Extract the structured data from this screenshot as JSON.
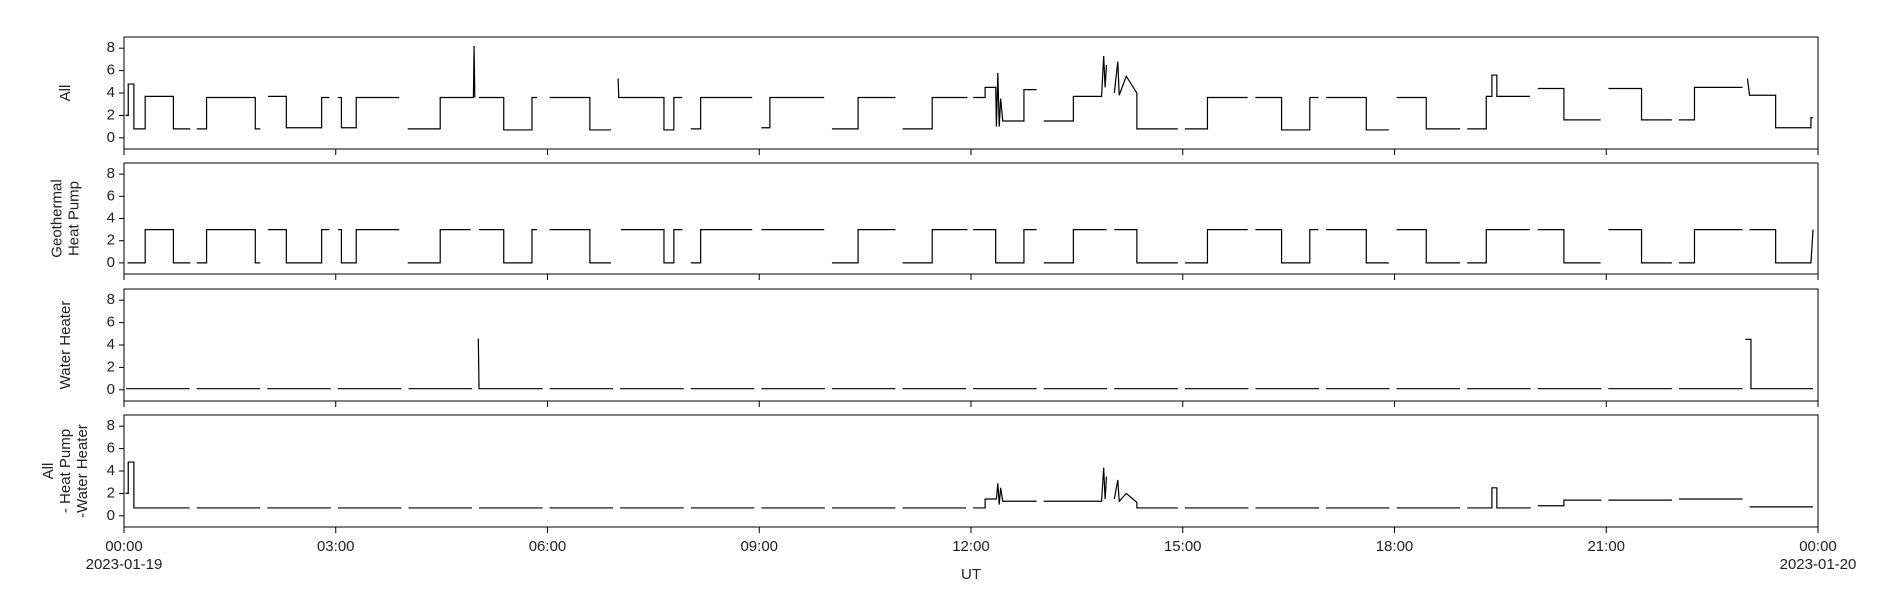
{
  "chart_data": [
    {
      "type": "line",
      "ylabel": [
        "All"
      ],
      "color": "#000000",
      "ylim": [
        -1,
        9
      ],
      "yticks": [
        0,
        2,
        4,
        6,
        8
      ],
      "xlim": [
        0,
        24
      ],
      "xticks": [
        0,
        3,
        6,
        9,
        12,
        15,
        18,
        21,
        24
      ],
      "x": [
        0.02,
        0.06,
        0.06,
        0.14,
        0.14,
        0.3,
        0.3,
        0.7,
        0.7,
        0.94,
        0.97,
        1.03,
        1.17,
        1.17,
        1.86,
        1.86,
        1.93,
        1.97,
        2.04,
        2.3,
        2.3,
        2.8,
        2.8,
        2.91,
        2.97,
        3.03,
        3.08,
        3.08,
        3.29,
        3.29,
        3.9,
        3.97,
        4.02,
        4.48,
        4.48,
        4.95,
        4.96,
        4.97,
        5.0,
        5.03,
        5.38,
        5.38,
        5.78,
        5.78,
        5.85,
        5.97,
        6.03,
        6.6,
        6.6,
        6.9,
        6.97,
        7.0,
        7.01,
        7.04,
        7.65,
        7.65,
        7.79,
        7.79,
        7.91,
        7.97,
        8.03,
        8.17,
        8.17,
        8.9,
        8.97,
        9.03,
        9.15,
        9.15,
        9.92,
        9.97,
        10.03,
        10.4,
        10.4,
        10.93,
        10.97,
        11.03,
        11.45,
        11.45,
        11.95,
        11.98,
        12.03,
        12.2,
        12.2,
        12.35,
        12.36,
        12.38,
        12.4,
        12.42,
        12.45,
        12.75,
        12.75,
        12.93,
        12.97,
        13.03,
        13.45,
        13.45,
        13.85,
        13.88,
        13.9,
        13.92,
        13.97,
        14.03,
        14.08,
        14.1,
        14.2,
        14.35,
        14.35,
        14.93,
        14.97,
        15.03,
        15.35,
        15.35,
        15.92,
        15.97,
        16.03,
        16.4,
        16.4,
        16.8,
        16.8,
        16.92,
        16.97,
        17.03,
        17.6,
        17.6,
        17.92,
        17.97,
        18.03,
        18.45,
        18.45,
        18.93,
        18.97,
        19.03,
        19.3,
        19.3,
        19.38,
        19.38,
        19.45,
        19.45,
        19.92,
        19.97,
        20.03,
        20.4,
        20.4,
        20.92,
        20.97,
        21.03,
        21.5,
        21.5,
        21.93,
        21.97,
        22.03,
        22.25,
        22.25,
        22.93,
        22.97,
        23.0,
        23.03,
        23.4,
        23.4,
        23.9,
        23.9,
        23.93
      ],
      "values": [
        2,
        2,
        4.8,
        4.8,
        0.8,
        0.8,
        3.7,
        3.7,
        0.8,
        0.8,
        null,
        0.8,
        0.8,
        3.6,
        3.6,
        0.8,
        0.8,
        null,
        3.7,
        3.7,
        0.9,
        0.9,
        3.6,
        3.6,
        null,
        3.6,
        3.6,
        0.9,
        0.9,
        3.6,
        3.6,
        null,
        0.8,
        0.8,
        3.6,
        3.6,
        8.2,
        3.6,
        null,
        3.6,
        3.6,
        0.7,
        0.7,
        3.6,
        3.6,
        null,
        3.6,
        3.6,
        0.7,
        0.7,
        null,
        5.3,
        3.6,
        3.6,
        3.6,
        0.7,
        0.7,
        3.6,
        3.6,
        null,
        0.8,
        0.8,
        3.6,
        3.6,
        null,
        0.9,
        0.9,
        3.6,
        3.6,
        null,
        0.8,
        0.8,
        3.6,
        3.6,
        null,
        0.8,
        0.8,
        3.6,
        3.6,
        null,
        3.6,
        3.6,
        4.5,
        4.5,
        1.0,
        5.8,
        1.0,
        3.5,
        1.5,
        1.5,
        4.3,
        4.3,
        null,
        1.5,
        1.5,
        3.7,
        3.7,
        7.3,
        4.5,
        6.5,
        null,
        4.0,
        6.8,
        3.8,
        5.5,
        4.0,
        0.8,
        0.8,
        null,
        0.8,
        0.8,
        3.6,
        3.6,
        null,
        3.6,
        3.6,
        0.7,
        0.7,
        3.6,
        3.6,
        null,
        3.6,
        3.6,
        0.7,
        0.7,
        null,
        3.6,
        3.6,
        0.8,
        0.8,
        null,
        0.8,
        0.8,
        3.7,
        3.7,
        5.6,
        5.6,
        3.7,
        3.7,
        null,
        4.4,
        4.4,
        1.6,
        1.6,
        null,
        4.4,
        4.4,
        1.6,
        1.6,
        null,
        1.6,
        1.6,
        4.5,
        4.5,
        null,
        5.3,
        3.8,
        3.8,
        0.9,
        0.9,
        1.8,
        1.8
      ]
    },
    {
      "type": "line",
      "ylabel": [
        "Geothermal",
        "Heat Pump"
      ],
      "color": "#000000",
      "ylim": [
        -1,
        9
      ],
      "yticks": [
        0,
        2,
        4,
        6,
        8
      ],
      "xlim": [
        0,
        24
      ],
      "xticks": [
        0,
        3,
        6,
        9,
        12,
        15,
        18,
        21,
        24
      ],
      "x": [
        0.05,
        0.3,
        0.3,
        0.7,
        0.7,
        0.94,
        0.97,
        1.03,
        1.17,
        1.17,
        1.86,
        1.86,
        1.93,
        1.97,
        2.04,
        2.3,
        2.3,
        2.8,
        2.8,
        2.91,
        2.97,
        3.03,
        3.08,
        3.08,
        3.29,
        3.29,
        3.9,
        3.97,
        4.02,
        4.48,
        4.48,
        4.91,
        4.97,
        5.03,
        5.38,
        5.38,
        5.78,
        5.78,
        5.85,
        5.97,
        6.03,
        6.6,
        6.6,
        6.9,
        6.97,
        7.04,
        7.65,
        7.65,
        7.79,
        7.79,
        7.91,
        7.97,
        8.03,
        8.17,
        8.17,
        8.9,
        8.97,
        9.03,
        9.92,
        9.97,
        10.03,
        10.4,
        10.4,
        10.93,
        10.97,
        11.03,
        11.45,
        11.45,
        11.95,
        11.98,
        12.03,
        12.35,
        12.35,
        12.75,
        12.75,
        12.93,
        12.97,
        13.03,
        13.45,
        13.45,
        13.92,
        13.97,
        14.03,
        14.35,
        14.35,
        14.93,
        14.97,
        15.03,
        15.35,
        15.35,
        15.92,
        15.97,
        16.03,
        16.4,
        16.4,
        16.8,
        16.8,
        16.92,
        16.97,
        17.03,
        17.6,
        17.6,
        17.92,
        17.97,
        18.03,
        18.45,
        18.45,
        18.93,
        18.97,
        19.03,
        19.3,
        19.3,
        19.92,
        19.97,
        20.03,
        20.4,
        20.4,
        20.92,
        20.97,
        21.03,
        21.5,
        21.5,
        21.93,
        21.97,
        22.03,
        22.25,
        22.25,
        22.93,
        22.97,
        23.03,
        23.4,
        23.4,
        23.9,
        23.93
      ],
      "values": [
        0,
        0,
        3,
        3,
        0,
        0,
        null,
        0,
        0,
        3,
        3,
        0,
        0,
        null,
        3,
        3,
        0,
        0,
        3,
        3,
        null,
        3,
        3,
        0,
        0,
        3,
        3,
        null,
        0,
        0,
        3,
        3,
        null,
        3,
        3,
        0,
        0,
        3,
        3,
        null,
        3,
        3,
        0,
        0,
        null,
        3,
        3,
        0,
        0,
        3,
        3,
        null,
        0,
        0,
        3,
        3,
        null,
        3,
        3,
        null,
        0,
        0,
        3,
        3,
        null,
        0,
        0,
        3,
        3,
        null,
        3,
        3,
        0,
        0,
        3,
        3,
        null,
        0,
        0,
        3,
        3,
        null,
        3,
        3,
        0,
        0,
        null,
        0,
        0,
        3,
        3,
        null,
        3,
        3,
        0,
        0,
        3,
        3,
        null,
        3,
        3,
        0,
        0,
        null,
        3,
        3,
        0,
        0,
        null,
        0,
        0,
        3,
        3,
        null,
        3,
        3,
        0,
        0,
        null,
        3,
        3,
        0,
        0,
        null,
        0,
        0,
        3,
        3,
        null,
        3,
        3,
        0,
        0,
        3
      ]
    },
    {
      "type": "line",
      "ylabel": [
        "Water Heater"
      ],
      "color": "#000000",
      "ylim": [
        -1,
        9
      ],
      "yticks": [
        0,
        2,
        4,
        6,
        8
      ],
      "xlim": [
        0,
        24
      ],
      "xticks": [
        0,
        3,
        6,
        9,
        12,
        15,
        18,
        21,
        24
      ],
      "x": [
        0.03,
        0.93,
        0.97,
        1.03,
        1.93,
        1.97,
        2.03,
        2.93,
        2.97,
        3.03,
        3.93,
        3.97,
        4.03,
        4.93,
        4.97,
        5.01,
        5.02,
        5.03,
        5.93,
        5.97,
        6.03,
        6.93,
        6.97,
        7.03,
        7.93,
        7.97,
        8.03,
        8.93,
        8.97,
        9.03,
        9.93,
        9.97,
        10.03,
        10.93,
        10.97,
        11.03,
        11.93,
        11.97,
        12.03,
        12.93,
        12.97,
        13.03,
        13.93,
        13.97,
        14.03,
        14.93,
        14.97,
        15.03,
        15.93,
        15.97,
        16.03,
        16.93,
        16.97,
        17.03,
        17.93,
        17.97,
        18.03,
        18.93,
        18.97,
        19.03,
        19.93,
        19.97,
        20.03,
        20.93,
        20.97,
        21.03,
        21.93,
        21.97,
        22.03,
        22.93,
        22.97,
        22.97,
        23.05,
        23.05,
        23.93
      ],
      "values": [
        0.1,
        0.1,
        null,
        0.1,
        0.1,
        null,
        0.1,
        0.1,
        null,
        0.1,
        0.1,
        null,
        0.1,
        0.1,
        null,
        4.5,
        4.5,
        0.1,
        0.1,
        null,
        0.1,
        0.1,
        null,
        0.1,
        0.1,
        null,
        0.1,
        0.1,
        null,
        0.1,
        0.1,
        null,
        0.1,
        0.1,
        null,
        0.1,
        0.1,
        null,
        0.1,
        0.1,
        null,
        0.1,
        0.1,
        null,
        0.1,
        0.1,
        null,
        0.1,
        0.1,
        null,
        0.1,
        0.1,
        null,
        0.1,
        0.1,
        null,
        0.1,
        0.1,
        null,
        0.1,
        0.1,
        null,
        0.1,
        0.1,
        null,
        0.1,
        0.1,
        null,
        0.1,
        0.1,
        null,
        4.5,
        4.5,
        0.1,
        0.1
      ]
    },
    {
      "type": "line",
      "ylabel": [
        "All",
        "- Heat Pump",
        "-Water Heater"
      ],
      "color": "#000000",
      "ylim": [
        -1,
        9
      ],
      "yticks": [
        0,
        2,
        4,
        6,
        8
      ],
      "xlim": [
        0,
        24
      ],
      "xticks": [
        {
          "value": 0,
          "label": "00:00"
        },
        {
          "value": 3,
          "label": "03:00"
        },
        {
          "value": 6,
          "label": "06:00"
        },
        {
          "value": 9,
          "label": "09:00"
        },
        {
          "value": 12,
          "label": "12:00"
        },
        {
          "value": 15,
          "label": "15:00"
        },
        {
          "value": 18,
          "label": "18:00"
        },
        {
          "value": 21,
          "label": "21:00"
        },
        {
          "value": 24,
          "label": "00:00"
        }
      ],
      "date_labels": [
        {
          "value": 0,
          "label": "2023-01-19"
        },
        {
          "value": 24,
          "label": "2023-01-20"
        }
      ],
      "xlabel": "UT",
      "x": [
        0.02,
        0.06,
        0.06,
        0.14,
        0.14,
        0.93,
        0.97,
        1.03,
        1.93,
        1.97,
        2.03,
        2.93,
        2.97,
        3.03,
        3.93,
        3.97,
        4.03,
        4.93,
        4.97,
        5.03,
        5.93,
        5.97,
        6.03,
        6.93,
        6.97,
        7.03,
        7.93,
        7.97,
        8.03,
        8.93,
        8.97,
        9.03,
        9.93,
        9.97,
        10.03,
        10.93,
        10.97,
        11.03,
        11.93,
        11.97,
        12.03,
        12.2,
        12.2,
        12.36,
        12.38,
        12.4,
        12.42,
        12.45,
        12.93,
        12.97,
        13.03,
        13.85,
        13.88,
        13.9,
        13.92,
        13.97,
        14.03,
        14.08,
        14.1,
        14.2,
        14.35,
        14.35,
        14.93,
        14.97,
        15.03,
        15.93,
        15.97,
        16.03,
        16.93,
        16.97,
        17.03,
        17.93,
        17.97,
        18.03,
        18.93,
        18.97,
        19.03,
        19.38,
        19.38,
        19.45,
        19.45,
        19.93,
        19.97,
        20.03,
        20.4,
        20.4,
        20.93,
        20.97,
        21.03,
        21.93,
        21.97,
        22.03,
        22.93,
        22.97,
        23.03,
        23.93
      ],
      "values": [
        2,
        2,
        4.8,
        4.8,
        0.7,
        0.7,
        null,
        0.7,
        0.7,
        null,
        0.7,
        0.7,
        null,
        0.7,
        0.7,
        null,
        0.7,
        0.7,
        null,
        0.7,
        0.7,
        null,
        0.7,
        0.7,
        null,
        0.7,
        0.7,
        null,
        0.7,
        0.7,
        null,
        0.7,
        0.7,
        null,
        0.7,
        0.7,
        null,
        0.7,
        0.7,
        null,
        0.7,
        0.7,
        1.5,
        1.5,
        2.9,
        1.0,
        2.5,
        1.3,
        1.3,
        null,
        1.3,
        1.3,
        4.3,
        1.5,
        3.5,
        null,
        1.5,
        3.2,
        1.3,
        2.0,
        1.2,
        0.7,
        0.7,
        null,
        0.7,
        0.7,
        null,
        0.7,
        0.7,
        null,
        0.7,
        0.7,
        null,
        0.7,
        0.7,
        null,
        0.7,
        0.7,
        2.5,
        2.5,
        0.7,
        0.7,
        null,
        0.9,
        0.9,
        1.4,
        1.4,
        null,
        1.4,
        1.4,
        null,
        1.5,
        1.5,
        null,
        0.8,
        0.8
      ]
    }
  ]
}
